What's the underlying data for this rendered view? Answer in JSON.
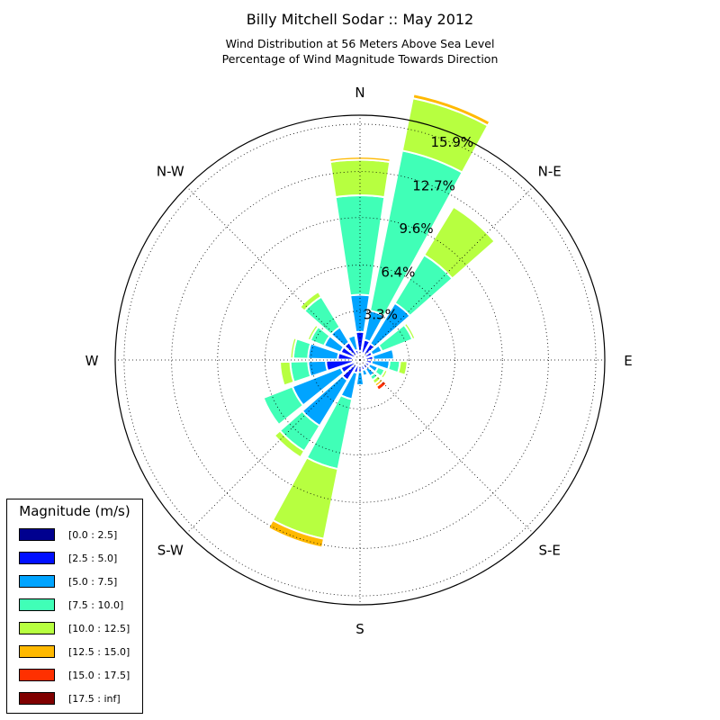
{
  "title": "Billy Mitchell Sodar :: May 2012",
  "subtitle_line1": "Wind Distribution at 56 Meters Above Sea Level",
  "subtitle_line2": "Percentage of Wind Magnitude Towards Direction",
  "legend": {
    "title": "Magnitude (m/s)",
    "items": [
      {
        "label": "[0.0 : 2.5]",
        "color": "#00008f"
      },
      {
        "label": "[2.5 : 5.0]",
        "color": "#0010ff"
      },
      {
        "label": "[5.0 : 7.5]",
        "color": "#00a4ff"
      },
      {
        "label": "[7.5 : 10.0]",
        "color": "#40ffb7"
      },
      {
        "label": "[10.0 : 12.5]",
        "color": "#b7ff40"
      },
      {
        "label": "[12.5 : 15.0]",
        "color": "#ffb900"
      },
      {
        "label": "[15.0 : 17.5]",
        "color": "#ff3000"
      },
      {
        "label": "[17.5 : inf]",
        "color": "#800000"
      }
    ]
  },
  "chart_data": {
    "type": "windrose",
    "title": "Billy Mitchell Sodar :: May 2012",
    "radial_max": 16.5,
    "radial_ticks": [
      3.3,
      6.4,
      9.6,
      12.7,
      15.9
    ],
    "radial_tick_labels": [
      "3.3%",
      "6.4%",
      "9.6%",
      "12.7%",
      "15.9%"
    ],
    "compass_labels": [
      {
        "angle": 0,
        "label": "N"
      },
      {
        "angle": 45,
        "label": "N-E"
      },
      {
        "angle": 90,
        "label": "E"
      },
      {
        "angle": 135,
        "label": "S-E"
      },
      {
        "angle": 180,
        "label": "S"
      },
      {
        "angle": 225,
        "label": "S-W"
      },
      {
        "angle": 270,
        "label": "W"
      },
      {
        "angle": 315,
        "label": "N-W"
      }
    ],
    "bins": [
      "[0.0 : 2.5]",
      "[2.5 : 5.0]",
      "[5.0 : 7.5]",
      "[7.5 : 10.0]",
      "[10.0 : 12.5]",
      "[12.5 : 15.0]",
      "[15.0 : 17.5]",
      "[17.5 : inf]"
    ],
    "directions": [
      {
        "angle": 0,
        "values": [
          0.6,
          1.3,
          2.5,
          6.7,
          2.4,
          0.2,
          0,
          0
        ]
      },
      {
        "angle": 20,
        "values": [
          0.5,
          0.9,
          2.0,
          11.0,
          3.6,
          0.3,
          0,
          0
        ]
      },
      {
        "angle": 40,
        "values": [
          0.5,
          0.8,
          3.2,
          3.8,
          3.8,
          0,
          0,
          0
        ]
      },
      {
        "angle": 60,
        "values": [
          0.4,
          0.5,
          0.7,
          2.2,
          0.2,
          0,
          0,
          0
        ]
      },
      {
        "angle": 80,
        "values": [
          0.3,
          0.6,
          1.4,
          0.1,
          0,
          0,
          0,
          0
        ]
      },
      {
        "angle": 100,
        "values": [
          0.3,
          0.5,
          1.2,
          0.7,
          0.5,
          0,
          0,
          0
        ]
      },
      {
        "angle": 120,
        "values": [
          0.3,
          0.4,
          0.6,
          0.5,
          0.2,
          0,
          0,
          0
        ]
      },
      {
        "angle": 140,
        "values": [
          0.3,
          0.4,
          0.6,
          0.3,
          0.3,
          0.2,
          0.3,
          0
        ]
      },
      {
        "angle": 160,
        "values": [
          0.3,
          0.4,
          0.4,
          0.1,
          0,
          0,
          0,
          0
        ]
      },
      {
        "angle": 180,
        "values": [
          0.3,
          0.5,
          0.9,
          0.1,
          0,
          0,
          0,
          0
        ]
      },
      {
        "angle": 200,
        "values": [
          0.3,
          0.6,
          1.8,
          4.8,
          4.8,
          0.6,
          0,
          0
        ]
      },
      {
        "angle": 220,
        "values": [
          0.4,
          1.2,
          3.6,
          2.0,
          0.5,
          0,
          0,
          0
        ]
      },
      {
        "angle": 240,
        "values": [
          0.4,
          1.0,
          3.5,
          2.1,
          0,
          0,
          0,
          0
        ]
      },
      {
        "angle": 260,
        "values": [
          0.5,
          1.8,
          1.2,
          1.2,
          0.7,
          0,
          0,
          0
        ]
      },
      {
        "angle": 280,
        "values": [
          0.5,
          1.0,
          2.0,
          1.0,
          0.2,
          0,
          0,
          0
        ]
      },
      {
        "angle": 300,
        "values": [
          0.4,
          1.0,
          1.2,
          1.0,
          0.2,
          0,
          0,
          0
        ]
      },
      {
        "angle": 320,
        "values": [
          0.4,
          1.0,
          1.2,
          2.4,
          0.4,
          0,
          0,
          0
        ]
      },
      {
        "angle": 340,
        "values": [
          0.3,
          0.4,
          1.0,
          0.1,
          0,
          0,
          0,
          0
        ]
      }
    ]
  }
}
